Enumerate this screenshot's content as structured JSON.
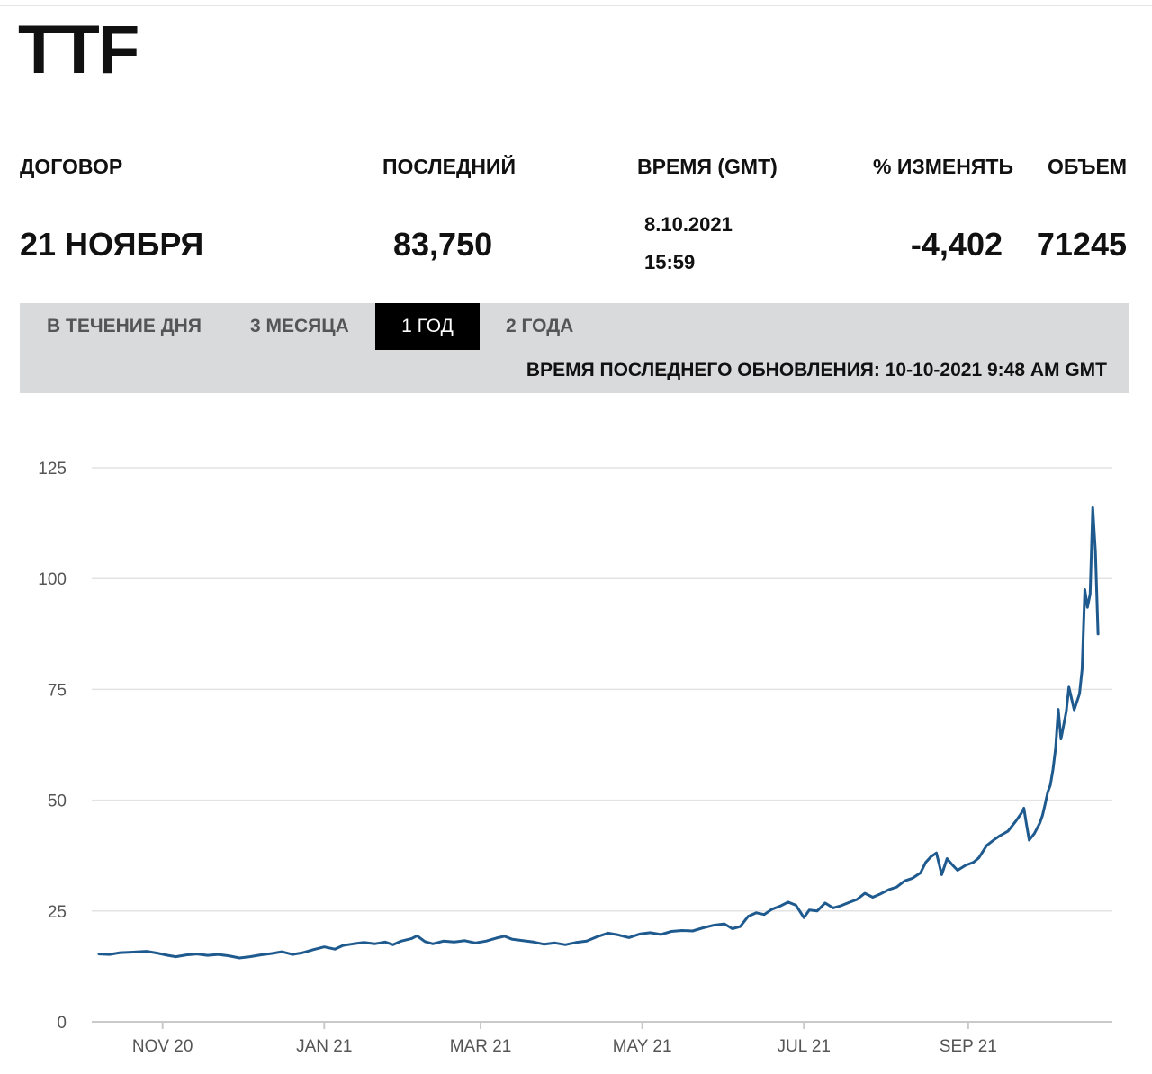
{
  "title": "TTF",
  "table": {
    "headers": {
      "contract": "ДОГОВОР",
      "last": "ПОСЛЕДНИЙ",
      "time": "ВРЕМЯ (GMT)",
      "change": "% ИЗМЕНЯТЬ",
      "volume": "ОБЪЕМ"
    },
    "row": {
      "contract": "21 НОЯБРЯ",
      "last": "83,750",
      "date": "8.10.2021",
      "time": "15:59",
      "change": "-4,402",
      "volume": "71245"
    }
  },
  "tabs": [
    {
      "label": "В ТЕЧЕНИЕ ДНЯ",
      "active": false
    },
    {
      "label": "3 МЕСЯЦА",
      "active": false
    },
    {
      "label": "1 ГОД",
      "active": true
    },
    {
      "label": "2 ГОДА",
      "active": false
    }
  ],
  "last_updated": "ВРЕМЯ ПОСЛЕДНЕГО ОБНОВЛЕНИЯ: 10-10-2021 9:48 AM GMT",
  "colors": {
    "line": "#1f5a8f",
    "grid": "#e3e3e3",
    "tabbar": "#d9dadc",
    "active_tab": "#000000"
  },
  "chart_data": {
    "type": "line",
    "title": "",
    "xlabel": "",
    "ylabel": "",
    "ylim": [
      0,
      125
    ],
    "yticks": [
      0,
      25,
      50,
      75,
      100,
      125
    ],
    "xticks": [
      {
        "label": "NOV 20",
        "date": "2020-11-01"
      },
      {
        "label": "JAN 21",
        "date": "2021-01-01"
      },
      {
        "label": "MAR 21",
        "date": "2021-03-01"
      },
      {
        "label": "MAY 21",
        "date": "2021-05-01"
      },
      {
        "label": "JUL 21",
        "date": "2021-07-01"
      },
      {
        "label": "SEP 21",
        "date": "2021-09-01"
      }
    ],
    "xlim": [
      "2020-10-08",
      "2021-10-22"
    ],
    "grid": true,
    "series": [
      {
        "points": [
          [
            "2020-10-08",
            15.3
          ],
          [
            "2020-10-12",
            15.2
          ],
          [
            "2020-10-16",
            15.6
          ],
          [
            "2020-10-20",
            15.7
          ],
          [
            "2020-10-26",
            15.9
          ],
          [
            "2020-10-30",
            15.5
          ],
          [
            "2020-11-03",
            15.0
          ],
          [
            "2020-11-06",
            14.7
          ],
          [
            "2020-11-10",
            15.1
          ],
          [
            "2020-11-14",
            15.3
          ],
          [
            "2020-11-18",
            15.0
          ],
          [
            "2020-11-22",
            15.2
          ],
          [
            "2020-11-26",
            14.9
          ],
          [
            "2020-11-30",
            14.4
          ],
          [
            "2020-12-04",
            14.7
          ],
          [
            "2020-12-08",
            15.1
          ],
          [
            "2020-12-12",
            15.4
          ],
          [
            "2020-12-16",
            15.8
          ],
          [
            "2020-12-20",
            15.2
          ],
          [
            "2020-12-24",
            15.6
          ],
          [
            "2020-12-28",
            16.3
          ],
          [
            "2021-01-01",
            16.9
          ],
          [
            "2021-01-05",
            16.4
          ],
          [
            "2021-01-08",
            17.2
          ],
          [
            "2021-01-12",
            17.6
          ],
          [
            "2021-01-16",
            17.9
          ],
          [
            "2021-01-20",
            17.6
          ],
          [
            "2021-01-24",
            18.0
          ],
          [
            "2021-01-27",
            17.4
          ],
          [
            "2021-01-30",
            18.2
          ],
          [
            "2021-02-03",
            18.8
          ],
          [
            "2021-02-05",
            19.4
          ],
          [
            "2021-02-08",
            18.1
          ],
          [
            "2021-02-11",
            17.6
          ],
          [
            "2021-02-15",
            18.2
          ],
          [
            "2021-02-19",
            18.0
          ],
          [
            "2021-02-23",
            18.3
          ],
          [
            "2021-02-27",
            17.8
          ],
          [
            "2021-03-03",
            18.2
          ],
          [
            "2021-03-07",
            18.9
          ],
          [
            "2021-03-10",
            19.3
          ],
          [
            "2021-03-13",
            18.6
          ],
          [
            "2021-03-17",
            18.3
          ],
          [
            "2021-03-21",
            18.0
          ],
          [
            "2021-03-25",
            17.5
          ],
          [
            "2021-03-29",
            17.8
          ],
          [
            "2021-04-02",
            17.4
          ],
          [
            "2021-04-06",
            17.9
          ],
          [
            "2021-04-10",
            18.2
          ],
          [
            "2021-04-14",
            19.2
          ],
          [
            "2021-04-18",
            20.0
          ],
          [
            "2021-04-22",
            19.6
          ],
          [
            "2021-04-26",
            19.0
          ],
          [
            "2021-04-30",
            19.8
          ],
          [
            "2021-05-04",
            20.1
          ],
          [
            "2021-05-08",
            19.7
          ],
          [
            "2021-05-12",
            20.4
          ],
          [
            "2021-05-16",
            20.6
          ],
          [
            "2021-05-20",
            20.5
          ],
          [
            "2021-05-24",
            21.2
          ],
          [
            "2021-05-28",
            21.8
          ],
          [
            "2021-06-01",
            22.1
          ],
          [
            "2021-06-04",
            21.0
          ],
          [
            "2021-06-07",
            21.5
          ],
          [
            "2021-06-10",
            23.8
          ],
          [
            "2021-06-13",
            24.6
          ],
          [
            "2021-06-16",
            24.2
          ],
          [
            "2021-06-19",
            25.4
          ],
          [
            "2021-06-22",
            26.1
          ],
          [
            "2021-06-25",
            27.0
          ],
          [
            "2021-06-28",
            26.3
          ],
          [
            "2021-07-01",
            23.5
          ],
          [
            "2021-07-03",
            25.2
          ],
          [
            "2021-07-06",
            25.0
          ],
          [
            "2021-07-09",
            26.8
          ],
          [
            "2021-07-12",
            25.7
          ],
          [
            "2021-07-15",
            26.2
          ],
          [
            "2021-07-18",
            26.9
          ],
          [
            "2021-07-21",
            27.6
          ],
          [
            "2021-07-24",
            29.0
          ],
          [
            "2021-07-27",
            28.1
          ],
          [
            "2021-07-30",
            28.9
          ],
          [
            "2021-08-02",
            29.8
          ],
          [
            "2021-08-05",
            30.4
          ],
          [
            "2021-08-08",
            31.8
          ],
          [
            "2021-08-11",
            32.4
          ],
          [
            "2021-08-14",
            33.6
          ],
          [
            "2021-08-16",
            36.0
          ],
          [
            "2021-08-18",
            37.3
          ],
          [
            "2021-08-20",
            38.1
          ],
          [
            "2021-08-22",
            33.2
          ],
          [
            "2021-08-24",
            36.8
          ],
          [
            "2021-08-26",
            35.4
          ],
          [
            "2021-08-28",
            34.2
          ],
          [
            "2021-08-31",
            35.3
          ],
          [
            "2021-09-03",
            36.0
          ],
          [
            "2021-09-05",
            37.0
          ],
          [
            "2021-09-08",
            39.8
          ],
          [
            "2021-09-11",
            41.2
          ],
          [
            "2021-09-13",
            42.0
          ],
          [
            "2021-09-16",
            43.0
          ],
          [
            "2021-09-19",
            45.3
          ],
          [
            "2021-09-21",
            47.0
          ],
          [
            "2021-09-22",
            48.2
          ],
          [
            "2021-09-23",
            44.5
          ],
          [
            "2021-09-24",
            41.0
          ],
          [
            "2021-09-26",
            42.5
          ],
          [
            "2021-09-28",
            44.8
          ],
          [
            "2021-09-29",
            46.5
          ],
          [
            "2021-09-30",
            49.0
          ],
          [
            "2021-10-01",
            51.8
          ],
          [
            "2021-10-02",
            53.4
          ],
          [
            "2021-10-03",
            57.0
          ],
          [
            "2021-10-04",
            61.8
          ],
          [
            "2021-10-05",
            70.5
          ],
          [
            "2021-10-06",
            63.8
          ],
          [
            "2021-10-08",
            70.0
          ],
          [
            "2021-10-09",
            75.5
          ],
          [
            "2021-10-11",
            70.4
          ],
          [
            "2021-10-13",
            74.0
          ],
          [
            "2021-10-14",
            79.5
          ],
          [
            "2021-10-15",
            97.5
          ],
          [
            "2021-10-16",
            93.5
          ],
          [
            "2021-10-17",
            96.5
          ],
          [
            "2021-10-18",
            116.0
          ],
          [
            "2021-10-19",
            106.0
          ],
          [
            "2021-10-20",
            87.5
          ]
        ]
      }
    ]
  }
}
